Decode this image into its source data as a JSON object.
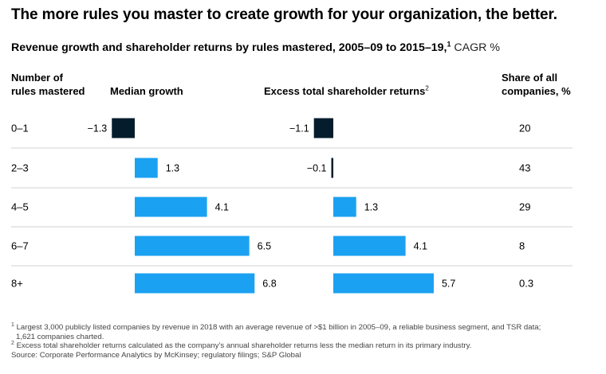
{
  "title": "The more rules you master to create growth for your organization, the better.",
  "subtitle": {
    "text": "Revenue growth and shareholder returns by rules mastered, 2005–09 to 2015–19,",
    "note_mark": "1",
    "unit": "CAGR %"
  },
  "column_headers": {
    "rules_line1": "Number of",
    "rules_line2": "rules mastered",
    "median_growth": "Median growth",
    "excess_returns": "Excess total shareholder returns",
    "excess_mark": "2",
    "share_line1": "Share of all",
    "share_line2": "companies, %"
  },
  "chart_data": {
    "type": "bar",
    "orientation": "horizontal",
    "title": "Revenue growth and shareholder returns by rules mastered, 2005–09 to 2015–19",
    "categories": [
      "0–1",
      "2–3",
      "4–5",
      "6–7",
      "8+"
    ],
    "series": [
      {
        "name": "Median growth",
        "values": [
          -1.3,
          1.3,
          4.1,
          6.5,
          6.8
        ],
        "labels": [
          "−1.3",
          "1.3",
          "4.1",
          "6.5",
          "6.8"
        ]
      },
      {
        "name": "Excess total shareholder returns",
        "values": [
          -1.1,
          -0.1,
          1.3,
          4.1,
          5.7
        ],
        "labels": [
          "−1.1",
          "−0.1",
          "1.3",
          "4.1",
          "5.7"
        ]
      }
    ],
    "share_of_companies": [
      "20",
      "43",
      "29",
      "8",
      "0.3"
    ],
    "colors": {
      "positive": "#1ba1f2",
      "negative": "#051c2c",
      "divider": "#d0d0d0"
    },
    "xlim": [
      -1.5,
      7
    ]
  },
  "footnotes": {
    "note1_mark": "1",
    "note1": "Largest 3,000 publicly listed companies by revenue in 2018 with an average revenue of >$1 billion in 2005–09, a reliable business segment, and TSR data;",
    "note1_cont": "1,621 companies charted.",
    "note2_mark": "2",
    "note2": "Excess total shareholder returns calculated as the company’s annual shareholder returns less the median return in its primary industry.",
    "source": "Source: Corporate Performance Analytics by McKinsey; regulatory filings; S&P Global"
  }
}
